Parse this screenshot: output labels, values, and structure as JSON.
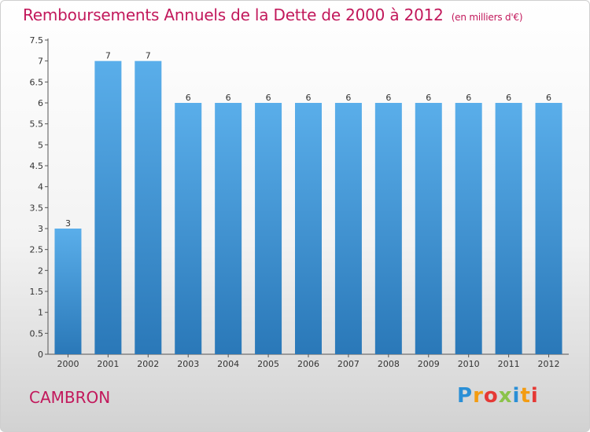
{
  "header": {
    "title": "Remboursements Annuels de la Dette de 2000 à 2012",
    "unit": "(en milliers d'€)"
  },
  "footer": {
    "town": "CAMBRON",
    "logo": "Proxiti"
  },
  "colors": {
    "title": "#c2185b",
    "bar_top": "#5aaeea",
    "bar_bottom": "#2a78b8"
  },
  "chart_data": {
    "type": "bar",
    "categories": [
      "2000",
      "2001",
      "2002",
      "2003",
      "2004",
      "2005",
      "2006",
      "2007",
      "2008",
      "2009",
      "2010",
      "2011",
      "2012"
    ],
    "values": [
      3,
      7,
      7,
      6,
      6,
      6,
      6,
      6,
      6,
      6,
      6,
      6,
      6
    ],
    "y_ticks": [
      "0",
      "0.5",
      "1",
      "1.5",
      "2",
      "2.5",
      "3",
      "3.5",
      "4",
      "4.5",
      "5",
      "5.5",
      "6",
      "6.5",
      "7",
      "7.5"
    ],
    "ylim": [
      0,
      7.5
    ],
    "grid": false
  }
}
